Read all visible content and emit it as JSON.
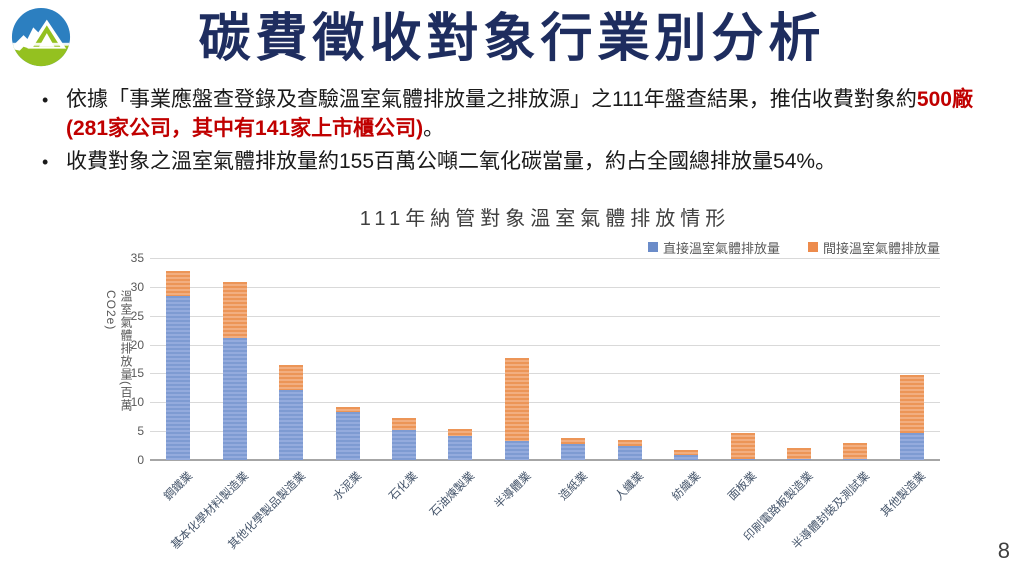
{
  "slide": {
    "title": "碳費徵收對象行業別分析",
    "page_number": "8",
    "logo_name": "environment-agency-logo",
    "logo_colors": {
      "blue": "#2C7FC0",
      "green": "#94C120"
    },
    "title_color": "#1E2D5F",
    "highlight_color": "#C00000"
  },
  "bullets": {
    "marker": "•",
    "item1": {
      "prefix": "依據「事業應盤查登錄及查驗溫室氣體排放量之排放源」之111年盤查結果，推估收費對象約",
      "highlight": "500廠(281家公司，其中有141家上市櫃公司)",
      "suffix": "。"
    },
    "item2": {
      "text": "收費對象之溫室氣體排放量約155百萬公噸二氧化碳當量，約占全國總排放量54%。"
    }
  },
  "chart_data": {
    "type": "bar",
    "stacked": true,
    "title": "111年納管對象溫室氣體排放情形",
    "xlabel": "",
    "ylabel": "溫室氣體排放量(百萬CO2e)",
    "ylim": [
      0,
      35
    ],
    "ytick_interval": 5,
    "grid": true,
    "legend_position": "top-right",
    "categories": [
      "鋼鐵業",
      "基本化學材料製造業",
      "其他化學製品製造業",
      "水泥業",
      "石化業",
      "石油煉製業",
      "半導體業",
      "造紙業",
      "人纖業",
      "紡織業",
      "面板業",
      "印刷電路板製造業",
      "半導體封裝及測試業",
      "其他製造業"
    ],
    "series": [
      {
        "name": "直接溫室氣體排放量",
        "color": "#6B8CC9",
        "values": [
          28.4,
          21.1,
          12.2,
          8.4,
          5.2,
          4.2,
          3.3,
          2.7,
          2.5,
          0.9,
          0.2,
          0.1,
          0.2,
          4.7
        ]
      },
      {
        "name": "間接溫室氣體排放量",
        "color": "#ED8B4C",
        "values": [
          4.3,
          9.7,
          4.2,
          0.8,
          2.1,
          1.2,
          14.4,
          1.2,
          0.9,
          0.8,
          4.5,
          2.0,
          2.7,
          10.1
        ]
      }
    ]
  }
}
